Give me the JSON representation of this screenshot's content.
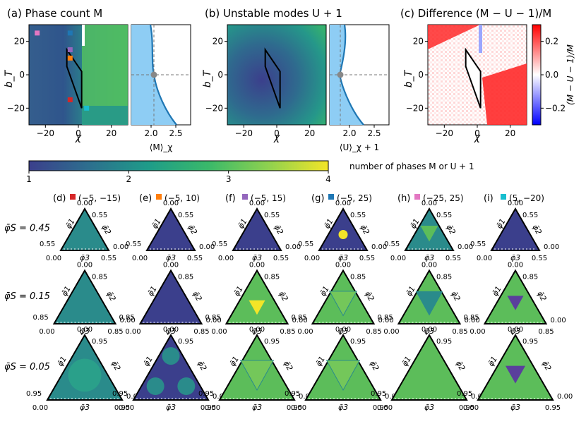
{
  "chart_data": [
    {
      "type": "heatmap",
      "title": "(a) Phase count M",
      "xlabel": "χ",
      "ylabel": "b_T",
      "xlim": [
        -30,
        30
      ],
      "ylim": [
        -30,
        30
      ],
      "xticks": [
        "−20",
        "0",
        "20"
      ],
      "yticks": [
        "20",
        "0",
        "−20"
      ],
      "markers": [
        {
          "label": "(−5, −15)",
          "x": -5,
          "y": -15,
          "color": "#d62728"
        },
        {
          "label": "(−5, 10)",
          "x": -5,
          "y": 10,
          "color": "#ff7f0e"
        },
        {
          "label": "(−5, 15)",
          "x": -5,
          "y": 15,
          "color": "#9467bd"
        },
        {
          "label": "(−5, 25)",
          "x": -5,
          "y": 25,
          "color": "#1f77b4"
        },
        {
          "label": "(−25, 25)",
          "x": -25,
          "y": 25,
          "color": "#e377c2"
        },
        {
          "label": "(5, −20)",
          "x": 5,
          "y": -20,
          "color": "#17becf"
        }
      ],
      "polygon": [
        [
          -7,
          15
        ],
        [
          2,
          2
        ],
        [
          2,
          -20
        ],
        [
          -7,
          5
        ]
      ]
    },
    {
      "type": "line",
      "title": "",
      "xlabel": "⟨M⟩_χ",
      "xlim": [
        1.6,
        2.8
      ],
      "ylim": [
        -30,
        30
      ],
      "xticks": [
        "2.0",
        "2.5"
      ],
      "marker_point": {
        "x": 2.05,
        "y": 0
      }
    },
    {
      "type": "heatmap",
      "title": "(b) Unstable modes U + 1",
      "xlabel": "χ",
      "ylabel": "b_T",
      "xlim": [
        -30,
        30
      ],
      "ylim": [
        -30,
        30
      ],
      "xticks": [
        "−20",
        "0",
        "20"
      ],
      "yticks": [
        "20",
        "0",
        "−20"
      ]
    },
    {
      "type": "line",
      "title": "",
      "xlabel": "⟨U⟩_χ + 1",
      "xlim": [
        1.6,
        2.8
      ],
      "ylim": [
        -30,
        30
      ],
      "xticks": [
        "2.0",
        "2.5"
      ],
      "marker_point": {
        "x": 1.88,
        "y": 0
      }
    },
    {
      "type": "heatmap",
      "title": "(c) Difference (M − U − 1)/M",
      "xlabel": "χ",
      "ylabel": "b_T",
      "xlim": [
        -30,
        30
      ],
      "ylim": [
        -30,
        30
      ],
      "xticks": [
        "−20",
        "0",
        "20"
      ],
      "yticks": [
        "20",
        "0",
        "−20"
      ],
      "colorbar": {
        "label": "(M − U − 1)/M",
        "range": [
          -0.3,
          0.3
        ],
        "ticks": [
          "0.2",
          "0.0",
          "−0.2"
        ],
        "colors": [
          "#0000ff",
          "#ffffff",
          "#ff0000"
        ]
      }
    }
  ],
  "colorbar_main": {
    "label": "number of phases M or U + 1",
    "ticks": [
      "1",
      "2",
      "3",
      "4"
    ],
    "range": [
      1,
      4
    ],
    "colors": [
      "#3b3f8c",
      "#2d6f8e",
      "#1e9c89",
      "#3ab96a",
      "#8fd14f",
      "#f3e528"
    ]
  },
  "ternary": {
    "columns": [
      {
        "label": "(d)",
        "coords": "(−5, −15)",
        "color": "#d62728"
      },
      {
        "label": "(e)",
        "coords": "(−5, 10)",
        "color": "#ff7f0e"
      },
      {
        "label": "(f)",
        "coords": "(−5, 15)",
        "color": "#9467bd"
      },
      {
        "label": "(g)",
        "coords": "(−5, 25)",
        "color": "#1f77b4"
      },
      {
        "label": "(h)",
        "coords": "(−25, 25)",
        "color": "#e377c2"
      },
      {
        "label": "(i)",
        "coords": "(5, −20)",
        "color": "#17becf"
      }
    ],
    "rows": [
      {
        "label": "φ̄S = 0.45",
        "max": "0.55",
        "zero": "0.00"
      },
      {
        "label": "φ̄S = 0.15",
        "max": "0.85",
        "zero": "0.00"
      },
      {
        "label": "φ̄S = 0.05",
        "max": "0.95",
        "zero": "0.00"
      }
    ],
    "axis_labels": {
      "left": "φ̄1",
      "right": "φ̄2",
      "bottom": "φ̄3"
    }
  }
}
